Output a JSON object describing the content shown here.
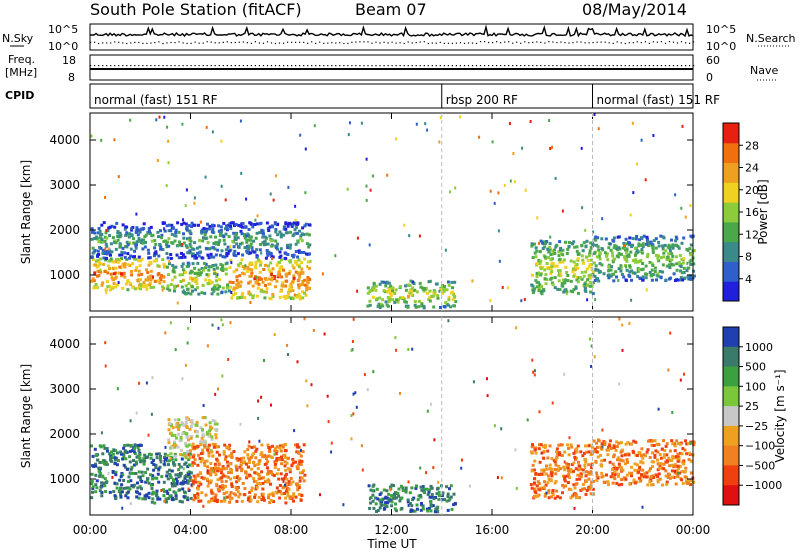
{
  "header": {
    "station": "South Pole Station (fitACF)",
    "beam": "Beam 07",
    "date": "08/May/2014"
  },
  "left_labels": {
    "nsky": "N.Sky",
    "freq_line1": "Freq.",
    "freq_line2": "[MHz]",
    "cpid": "CPID"
  },
  "right_labels": {
    "nsearch": "N.Search",
    "nave": "Nave"
  },
  "noise_panel": {
    "left_ticks": [
      "10^5",
      "10^0"
    ],
    "right_ticks": [
      "10^5",
      "10^0"
    ]
  },
  "freq_panel": {
    "left_ticks": [
      "18",
      "8"
    ],
    "right_ticks": [
      "60",
      "0"
    ]
  },
  "cpid_segments": [
    {
      "label": "normal (fast) 151 RF",
      "start_hour": 0,
      "end_hour": 14
    },
    {
      "label": "rbsp 200 RF",
      "start_hour": 14,
      "end_hour": 20
    },
    {
      "label": "normal (fast) 151 RF",
      "start_hour": 20,
      "end_hour": 24
    }
  ],
  "x_axis": {
    "label": "Time UT",
    "ticks": [
      "00:00",
      "04:00",
      "08:00",
      "12:00",
      "16:00",
      "20:00",
      "00:00"
    ],
    "range_hours": [
      0,
      24
    ]
  },
  "chart_data": [
    {
      "type": "heatmap",
      "panel": "power",
      "ylabel": "Slant Range [km]",
      "yticks": [
        "1000",
        "2000",
        "3000",
        "4000"
      ],
      "ylim": [
        200,
        4600
      ],
      "colorbar_label": "Power [dB]",
      "colorbar_ticks": [
        "4",
        "8",
        "12",
        "16",
        "20",
        "24",
        "28"
      ],
      "colorscale": [
        "#1f1fdc",
        "#2f5fc8",
        "#3a8a8a",
        "#4aa84a",
        "#8ccc3a",
        "#f0d020",
        "#f0a020",
        "#f07010",
        "#e82010"
      ],
      "features": [
        {
          "t0": 0.0,
          "t1": 3.0,
          "r0": 700,
          "r1": 1400,
          "level": 26
        },
        {
          "t0": 3.0,
          "t1": 5.5,
          "r0": 600,
          "r1": 1300,
          "level": 18
        },
        {
          "t0": 5.5,
          "t1": 8.7,
          "r0": 500,
          "r1": 1400,
          "level": 26
        },
        {
          "t0": 0.0,
          "t1": 8.7,
          "r0": 1400,
          "r1": 2200,
          "level": 10
        },
        {
          "t0": 11.0,
          "t1": 14.5,
          "r0": 300,
          "r1": 900,
          "level": 20
        },
        {
          "t0": 17.5,
          "t1": 20.0,
          "r0": 600,
          "r1": 1800,
          "level": 20
        },
        {
          "t0": 20.0,
          "t1": 24.0,
          "r0": 900,
          "r1": 1900,
          "level": 14
        }
      ]
    },
    {
      "type": "heatmap",
      "panel": "velocity",
      "ylabel": "Slant Range [km]",
      "yticks": [
        "1000",
        "2000",
        "3000",
        "4000"
      ],
      "ylim": [
        200,
        4600
      ],
      "colorbar_label": "Velocity [m s⁻¹]",
      "colorbar_ticks": [
        "1000",
        "500",
        "100",
        "25",
        "−25",
        "−100",
        "−500",
        "−1000"
      ],
      "colorscale": [
        "#2040b0",
        "#3a7a6a",
        "#3aa040",
        "#7ac83a",
        "#c8c8c8",
        "#f0a020",
        "#f08020",
        "#f04010",
        "#e01010"
      ],
      "features": [
        {
          "t0": 0.0,
          "t1": 2.0,
          "r0": 600,
          "r1": 1800,
          "level": 700
        },
        {
          "t0": 2.0,
          "t1": 4.0,
          "r0": 500,
          "r1": 1600,
          "level": 400
        },
        {
          "t0": 3.0,
          "t1": 5.0,
          "r0": 1500,
          "r1": 2400,
          "level": 0
        },
        {
          "t0": 4.0,
          "t1": 8.5,
          "r0": 500,
          "r1": 1800,
          "level": -200
        },
        {
          "t0": 11.0,
          "t1": 14.5,
          "r0": 300,
          "r1": 900,
          "level": 300
        },
        {
          "t0": 17.5,
          "t1": 20.0,
          "r0": 600,
          "r1": 1800,
          "level": -300
        },
        {
          "t0": 20.0,
          "t1": 24.0,
          "r0": 900,
          "r1": 1900,
          "level": -200
        }
      ]
    }
  ]
}
